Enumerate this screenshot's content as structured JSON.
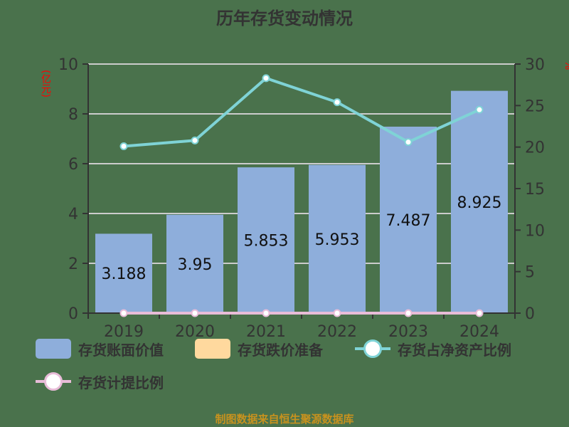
{
  "title": "历年存货变动情况",
  "source": "制图数据来自恒生聚源数据库",
  "axes": {
    "left_unit": "(亿元)",
    "right_unit": "%",
    "left_ticks": [
      "0",
      "2",
      "4",
      "6",
      "8",
      "10"
    ],
    "right_ticks": [
      "0",
      "5",
      "10",
      "15",
      "20",
      "25",
      "30"
    ]
  },
  "legend": [
    {
      "label": "存货账面价值",
      "type": "rect",
      "color": "#8eaedb"
    },
    {
      "label": "存货跌价准备",
      "type": "rect",
      "color": "#ffd99e"
    },
    {
      "label": "存货占净资产比例",
      "type": "line",
      "color": "#7fd3d6"
    },
    {
      "label": "存货计提比例",
      "type": "line",
      "color": "#e8bcd8"
    }
  ],
  "colors": {
    "background": "#4a724c",
    "bar": "#8eaedb",
    "line_ratio": "#7fd3d6",
    "line_provision": "#e8bcd8",
    "grid": "#cccccc",
    "axis": "#333333",
    "unit_label": "#ff0000",
    "source_text": "#c8921e"
  },
  "chart_data": {
    "type": "bar+line",
    "title": "历年存货变动情况",
    "categories": [
      "2019",
      "2020",
      "2021",
      "2022",
      "2023",
      "2024"
    ],
    "series": [
      {
        "name": "存货账面价值",
        "type": "bar",
        "axis": "left",
        "values": [
          3.188,
          3.95,
          5.853,
          5.953,
          7.487,
          8.925
        ]
      },
      {
        "name": "存货跌价准备",
        "type": "bar",
        "axis": "left",
        "values": [
          0,
          0,
          0,
          0,
          0,
          0
        ]
      },
      {
        "name": "存货占净资产比例",
        "type": "line",
        "axis": "right",
        "values": [
          20.1,
          20.8,
          28.3,
          25.4,
          20.6,
          24.5
        ]
      },
      {
        "name": "存货计提比例",
        "type": "line",
        "axis": "right",
        "values": [
          0,
          0,
          0,
          0,
          0,
          0
        ]
      }
    ],
    "data_labels": [
      "3.188",
      "3.95",
      "5.853",
      "5.953",
      "7.487",
      "8.925"
    ],
    "ylabel_left": "(亿元)",
    "ylabel_right": "%",
    "ylim_left": [
      0,
      10
    ],
    "ylim_right": [
      0,
      30
    ],
    "grid": true,
    "legend_position": "bottom"
  }
}
